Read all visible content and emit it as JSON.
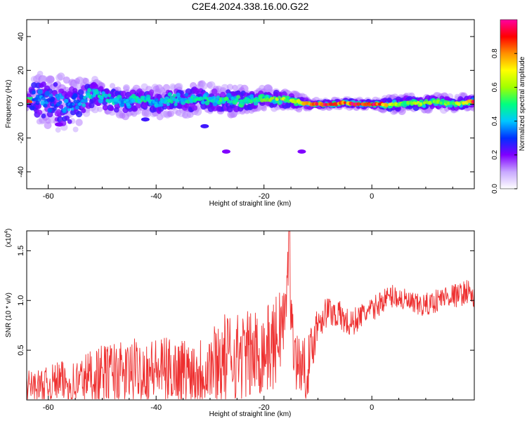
{
  "title": "C2E4.2024.338.16.00.G22",
  "chart_data": [
    {
      "type": "heatmap",
      "xlabel": "Height of straight line (km)",
      "ylabel": "Frequency (Hz)",
      "xlim": [
        -64,
        19
      ],
      "ylim": [
        -50,
        50
      ],
      "xticks": [
        -60,
        -40,
        -20,
        0
      ],
      "yticks": [
        -40,
        -20,
        0,
        20,
        40
      ],
      "colorbar": {
        "label": "Normalized spectral amplitude",
        "range": [
          0,
          1
        ],
        "ticks": [
          0.0,
          0.2,
          0.4,
          0.6,
          0.8
        ],
        "tick_labels": [
          "0.0",
          "0.2",
          "0.4",
          "0.6",
          "0.8"
        ],
        "colormap": [
          "#ffffff",
          "#c8a8ff",
          "#8000ff",
          "#0030ff",
          "#00c8ff",
          "#00ff80",
          "#a0ff00",
          "#ffff00",
          "#ff9000",
          "#ff0000",
          "#ff00a0"
        ]
      },
      "ridge": {
        "x": [
          -63,
          -61,
          -59,
          -57,
          -55,
          -53,
          -51,
          -49,
          -47,
          -45,
          -43,
          -41,
          -39,
          -37,
          -35,
          -33,
          -31,
          -29,
          -27,
          -25,
          -23,
          -21,
          -19,
          -17,
          -15,
          -13,
          -11,
          -9,
          -7,
          -5,
          -3,
          -1,
          1,
          3,
          5,
          7,
          9,
          11,
          13,
          15,
          17,
          19
        ],
        "y": [
          2,
          3,
          1,
          -2,
          0,
          4,
          6,
          3,
          2,
          1,
          3,
          2,
          1,
          3,
          2,
          3,
          4,
          2,
          3,
          2,
          2,
          3,
          3,
          3,
          2,
          1,
          0,
          0,
          0,
          1,
          0,
          0,
          0,
          0,
          0,
          1,
          0,
          1,
          1,
          0,
          1,
          2
        ],
        "amplitude": [
          0.3,
          0.35,
          0.3,
          0.35,
          0.35,
          0.4,
          0.45,
          0.4,
          0.4,
          0.4,
          0.45,
          0.4,
          0.4,
          0.45,
          0.4,
          0.45,
          0.45,
          0.45,
          0.5,
          0.45,
          0.5,
          0.5,
          0.55,
          0.6,
          0.6,
          0.65,
          0.85,
          0.9,
          0.9,
          0.8,
          0.95,
          0.95,
          0.9,
          0.7,
          0.55,
          0.55,
          0.6,
          0.55,
          0.55,
          0.6,
          0.6,
          0.85
        ],
        "spread": [
          7,
          7,
          8,
          8,
          7,
          5,
          4,
          4,
          4,
          4,
          4,
          4,
          4,
          4,
          4,
          4,
          4,
          4,
          4,
          4,
          3,
          3,
          3,
          3,
          2,
          2,
          1,
          1,
          1,
          1,
          1,
          1,
          1,
          2,
          2,
          2,
          2,
          2,
          2,
          2,
          2,
          2
        ]
      },
      "blobs": [
        {
          "x": -27,
          "y": -28,
          "a": 0.2
        },
        {
          "x": -31,
          "y": -13,
          "a": 0.25
        },
        {
          "x": -13,
          "y": -28,
          "a": 0.2
        },
        {
          "x": -42,
          "y": -9,
          "a": 0.25
        },
        {
          "x": -58,
          "y": -12,
          "a": 0.2
        }
      ]
    },
    {
      "type": "line",
      "xlabel": "Height of straight line (km)",
      "ylabel": "SNR (10 * v/v)",
      "y_multiplier": "(x10",
      "y_multiplier_exp": "4",
      "xlim": [
        -64,
        19
      ],
      "ylim": [
        0.0,
        1.7
      ],
      "xticks": [
        -60,
        -40,
        -20,
        0
      ],
      "yticks": [
        0.5,
        1.0,
        1.5
      ],
      "ytick_labels": [
        "0.5",
        "1.0",
        "1.5"
      ],
      "line_color": "#ee3030",
      "series": [
        {
          "x": [
            -64,
            -62,
            -60,
            -58,
            -56,
            -54,
            -52,
            -50,
            -48,
            -46,
            -44,
            -42,
            -40,
            -38,
            -36,
            -34,
            -32,
            -30,
            -28,
            -26,
            -24,
            -22,
            -20,
            -18,
            -17,
            -16,
            -15.3,
            -15,
            -14,
            -12,
            -10,
            -8,
            -6,
            -4,
            -2,
            0,
            2,
            4,
            6,
            8,
            10,
            12,
            14,
            16,
            18,
            19
          ],
          "y": [
            0.15,
            0.15,
            0.15,
            0.2,
            0.15,
            0.2,
            0.25,
            0.25,
            0.3,
            0.25,
            0.3,
            0.3,
            0.3,
            0.3,
            0.3,
            0.3,
            0.3,
            0.35,
            0.4,
            0.45,
            0.45,
            0.45,
            0.5,
            0.55,
            0.75,
            0.8,
            1.65,
            0.8,
            0.4,
            0.3,
            0.8,
            0.9,
            0.85,
            0.75,
            0.85,
            0.9,
            1.0,
            1.05,
            1.0,
            0.95,
            0.95,
            1.0,
            1.05,
            1.05,
            1.1,
            1.0
          ],
          "amplitude": [
            0.15,
            0.15,
            0.18,
            0.2,
            0.22,
            0.25,
            0.28,
            0.3,
            0.3,
            0.32,
            0.32,
            0.32,
            0.33,
            0.33,
            0.33,
            0.33,
            0.35,
            0.4,
            0.45,
            0.45,
            0.45,
            0.45,
            0.45,
            0.45,
            0.45,
            0.45,
            0.2,
            0.3,
            0.3,
            0.3,
            0.2,
            0.15,
            0.15,
            0.15,
            0.12,
            0.12,
            0.12,
            0.12,
            0.12,
            0.12,
            0.12,
            0.12,
            0.12,
            0.12,
            0.12,
            0.12
          ]
        }
      ]
    }
  ]
}
